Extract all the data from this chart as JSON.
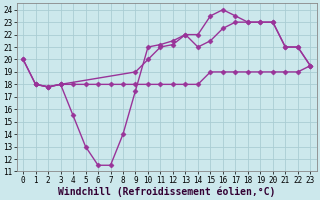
{
  "xlabel": "Windchill (Refroidissement éolien,°C)",
  "bg_color": "#cce8ec",
  "grid_color": "#aacdd4",
  "line_color": "#993399",
  "xlim": [
    -0.5,
    23.5
  ],
  "ylim": [
    11,
    24.5
  ],
  "xticks": [
    0,
    1,
    2,
    3,
    4,
    5,
    6,
    7,
    8,
    9,
    10,
    11,
    12,
    13,
    14,
    15,
    16,
    17,
    18,
    19,
    20,
    21,
    22,
    23
  ],
  "yticks": [
    11,
    12,
    13,
    14,
    15,
    16,
    17,
    18,
    19,
    20,
    21,
    22,
    23,
    24
  ],
  "line1_x": [
    0,
    1,
    2,
    3,
    4,
    5,
    6,
    7,
    8,
    9,
    10,
    11,
    12,
    13,
    14,
    15,
    16,
    17,
    18,
    19,
    20,
    21,
    22,
    23
  ],
  "line1_y": [
    20,
    18,
    17.8,
    18,
    18,
    18,
    18,
    18,
    18,
    18,
    18,
    18,
    18,
    18,
    18,
    19,
    19,
    19,
    19,
    19,
    19,
    19,
    19,
    19.5
  ],
  "line2_x": [
    0,
    1,
    2,
    3,
    9,
    10,
    11,
    12,
    13,
    14,
    15,
    16,
    17,
    18,
    19,
    20,
    21,
    22,
    23
  ],
  "line2_y": [
    20,
    18,
    17.8,
    18,
    19,
    20,
    21,
    21.2,
    22,
    21,
    21.5,
    22.5,
    23,
    23,
    23,
    23,
    21,
    21,
    19.5
  ],
  "line3_x": [
    1,
    2,
    3,
    4,
    5,
    6,
    7,
    8,
    9,
    10,
    11,
    12,
    13,
    14,
    15,
    16,
    17,
    18,
    19,
    20,
    21,
    22,
    23
  ],
  "line3_y": [
    18,
    17.8,
    18,
    15.5,
    13,
    11.5,
    11.5,
    14,
    17.5,
    21,
    21.2,
    21.5,
    22,
    22,
    23.5,
    24,
    23.5,
    23,
    23,
    23,
    21,
    21,
    19.5
  ],
  "marker": "D",
  "markersize": 2.5,
  "linewidth": 1.0,
  "xlabel_fontsize": 7,
  "tick_fontsize": 5.5
}
